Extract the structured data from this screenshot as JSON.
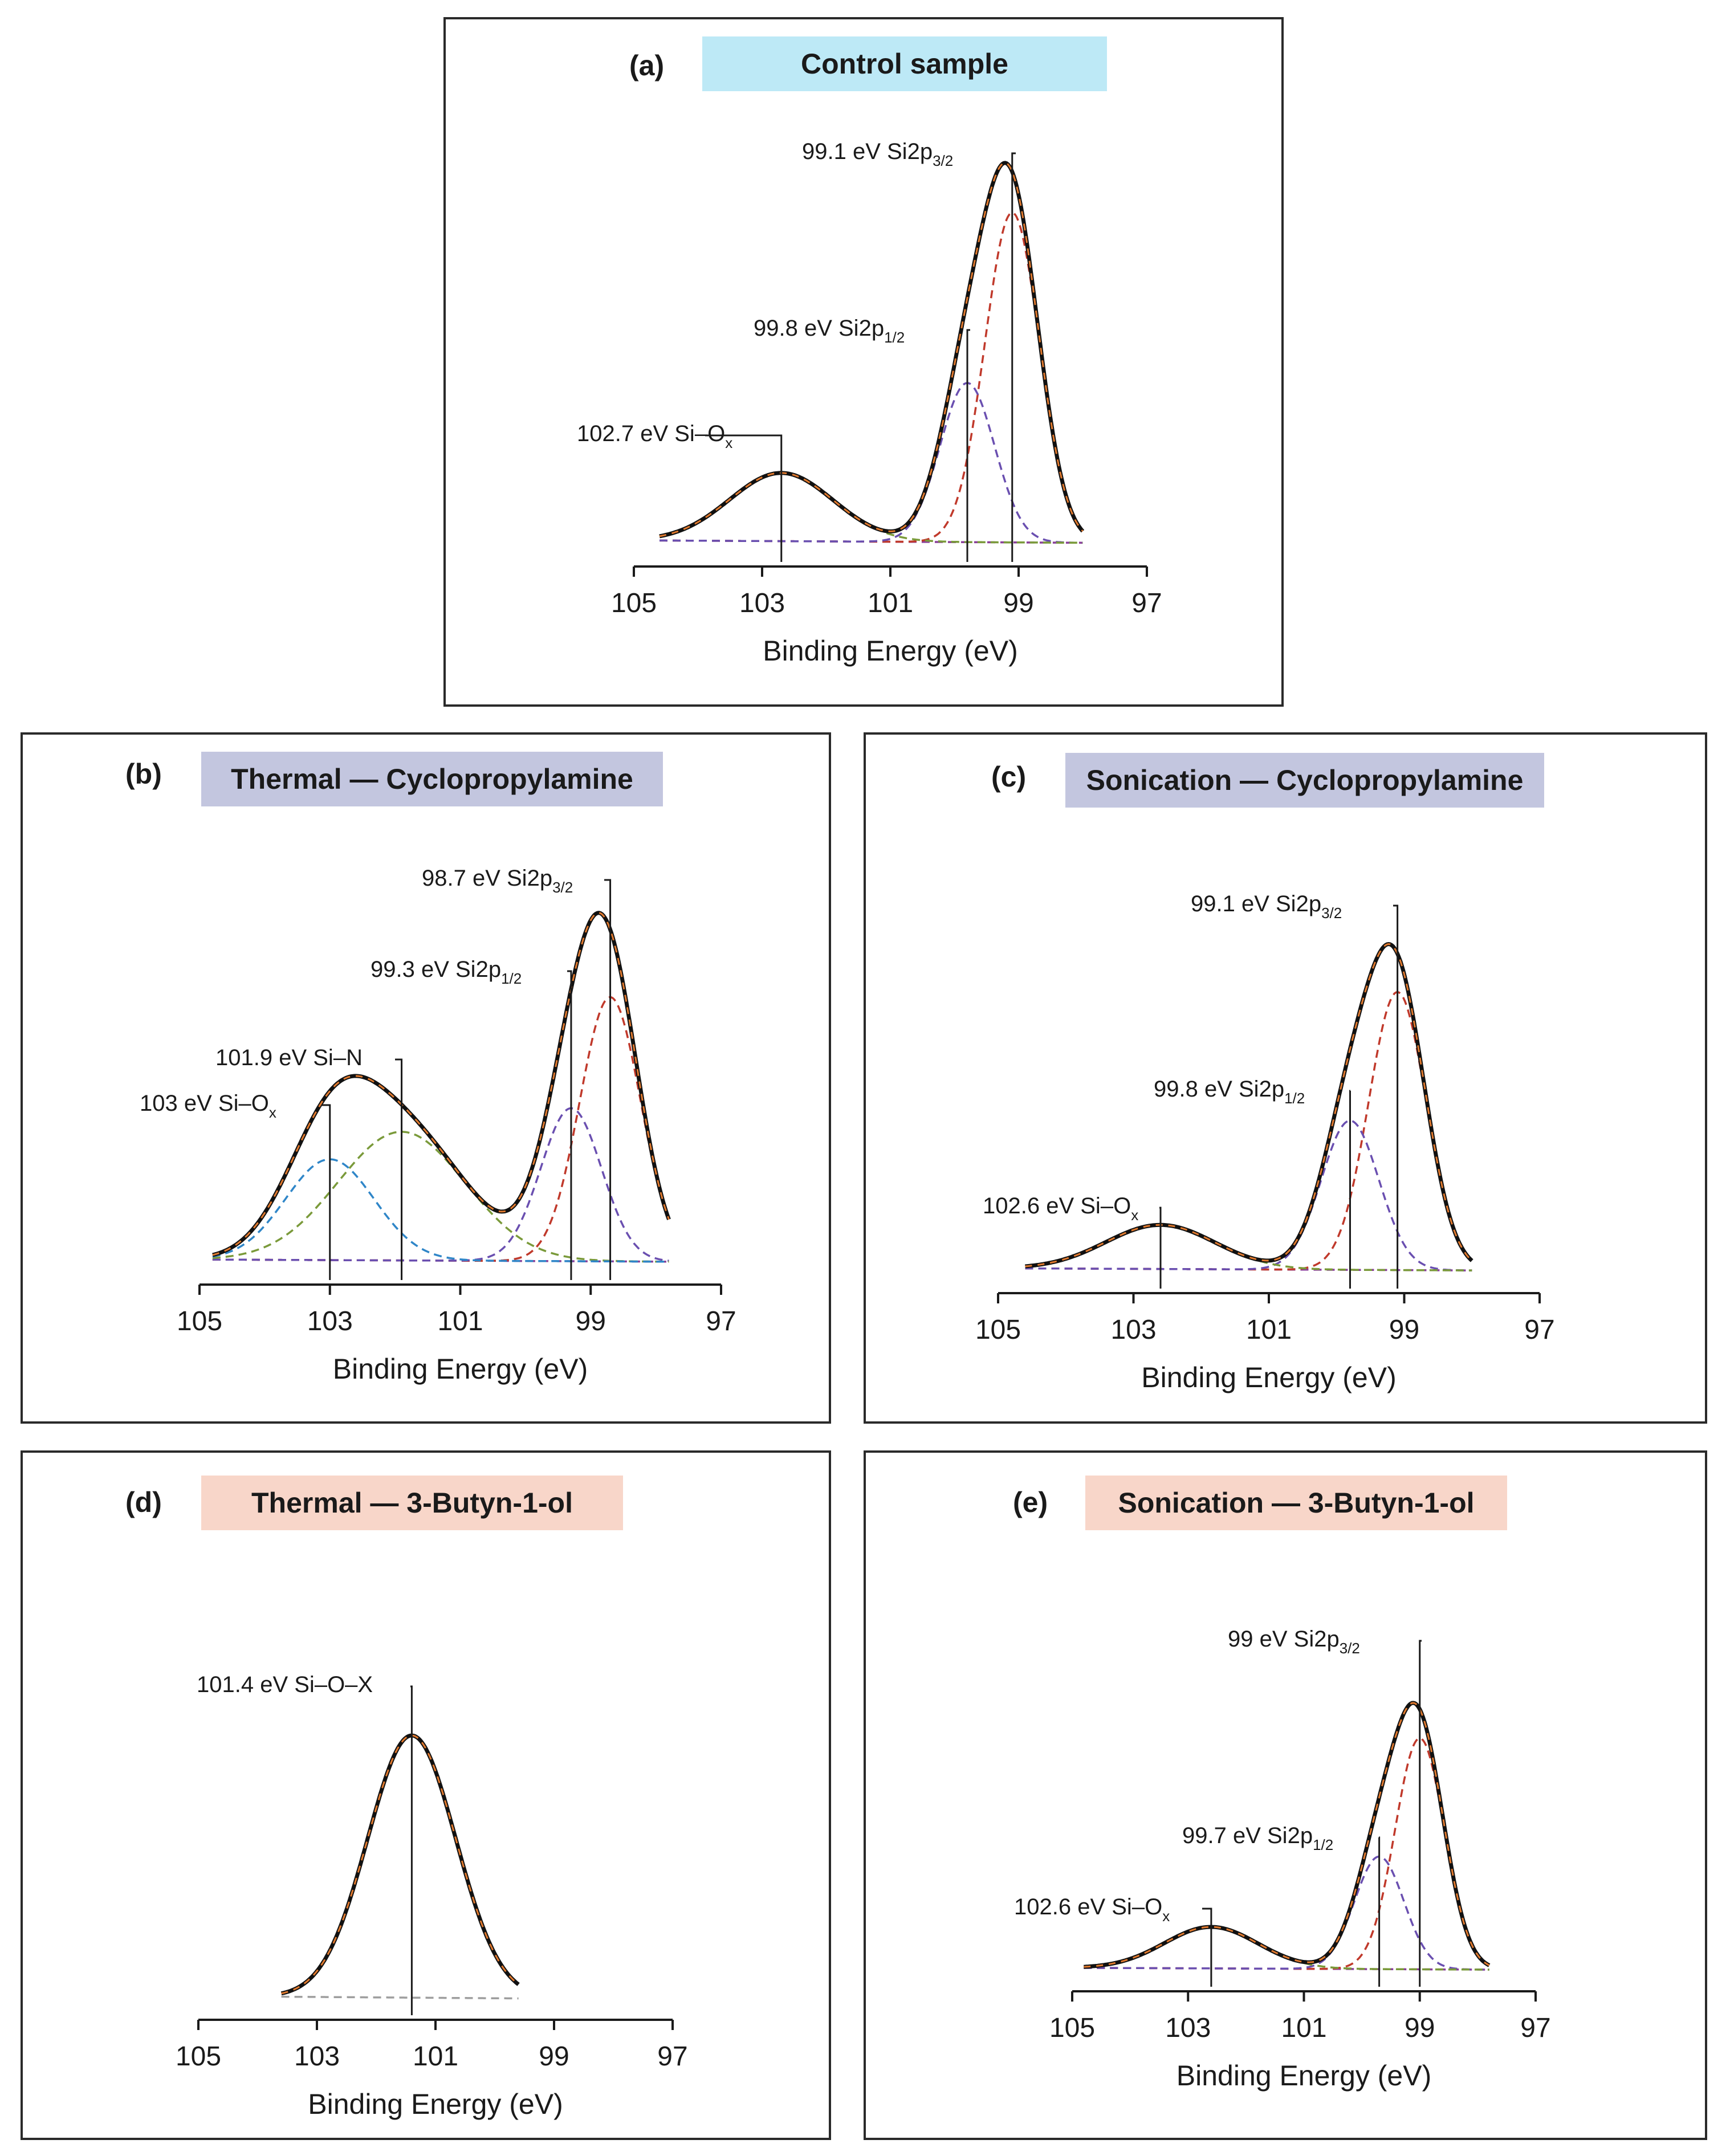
{
  "xaxis_label": "Binding Energy (eV)",
  "colors": {
    "envelope": "#111111",
    "fit_dashed": "#e0792e",
    "si2p32": "#c0392b",
    "si2p12": "#6a4fb0",
    "siox": "#7a9a3a",
    "sin": "#2f86c8",
    "background": "#8a3f9a",
    "background_d": "#9e9e9e",
    "control_title_bg": "#bde9f6",
    "cyclo_title_bg": "#c3c6df",
    "butynol_title_bg": "#f8d6c9"
  },
  "chart_data": [
    {
      "id": "a",
      "type": "line",
      "panel_label": "(a)",
      "title": "Control sample",
      "xlabel": "Binding Energy (eV)",
      "xlim": [
        105,
        97
      ],
      "xticks": [
        "105",
        "103",
        "101",
        "99",
        "97"
      ],
      "xtick_values": [
        105,
        103,
        101,
        99,
        97
      ],
      "fit_range": [
        104.6,
        98.0
      ],
      "components": [
        {
          "name": "Si2p3/2",
          "color_key": "si2p32",
          "center": 99.1,
          "fwhm": 1.0,
          "amplitude": 0.87
        },
        {
          "name": "Si2p1/2",
          "color_key": "si2p12",
          "center": 99.8,
          "fwhm": 1.0,
          "amplitude": 0.42
        },
        {
          "name": "Si–Ox",
          "color_key": "siox",
          "center": 102.7,
          "fwhm": 1.9,
          "amplitude": 0.18
        }
      ],
      "peak_labels": [
        {
          "position": 99.1,
          "prefix": "99.1 eV Si2p",
          "sub": "3/2"
        },
        {
          "position": 99.8,
          "prefix": "99.8 eV Si2p",
          "sub": "1/2"
        },
        {
          "position": 102.7,
          "prefix": "102.7 eV Si–O",
          "sub": "x"
        }
      ]
    },
    {
      "id": "b",
      "type": "line",
      "panel_label": "(b)",
      "title": "Thermal — Cyclopropylamine",
      "xlabel": "Binding Energy (eV)",
      "xlim": [
        105,
        97
      ],
      "xticks": [
        "105",
        "103",
        "101",
        "99",
        "97"
      ],
      "xtick_values": [
        105,
        103,
        101,
        99,
        97
      ],
      "fit_range": [
        104.8,
        97.8
      ],
      "components": [
        {
          "name": "Si2p3/2",
          "color_key": "si2p32",
          "center": 98.7,
          "fwhm": 1.1,
          "amplitude": 0.76
        },
        {
          "name": "Si2p1/2",
          "color_key": "si2p12",
          "center": 99.3,
          "fwhm": 1.1,
          "amplitude": 0.44
        },
        {
          "name": "Si–N",
          "color_key": "siox",
          "center": 101.9,
          "fwhm": 2.3,
          "amplitude": 0.37
        },
        {
          "name": "Si–Ox",
          "color_key": "sin",
          "center": 103.0,
          "fwhm": 1.6,
          "amplitude": 0.29
        }
      ],
      "peak_labels": [
        {
          "position": 98.7,
          "prefix": "98.7 eV Si2p",
          "sub": "3/2"
        },
        {
          "position": 99.3,
          "prefix": "99.3 eV Si2p",
          "sub": "1/2"
        },
        {
          "position": 101.9,
          "prefix": "101.9 eV Si–N",
          "sub": ""
        },
        {
          "position": 103.0,
          "prefix": "103 eV Si–O",
          "sub": "x"
        }
      ]
    },
    {
      "id": "c",
      "type": "line",
      "panel_label": "(c)",
      "title": "Sonication — Cyclopropylamine",
      "xlabel": "Binding Energy (eV)",
      "xlim": [
        105,
        97
      ],
      "xticks": [
        "105",
        "103",
        "101",
        "99",
        "97"
      ],
      "xtick_values": [
        105,
        103,
        101,
        99,
        97
      ],
      "fit_range": [
        104.6,
        98.0
      ],
      "components": [
        {
          "name": "Si2p3/2",
          "color_key": "si2p32",
          "center": 99.1,
          "fwhm": 1.0,
          "amplitude": 0.82
        },
        {
          "name": "Si2p1/2",
          "color_key": "si2p12",
          "center": 99.8,
          "fwhm": 1.0,
          "amplitude": 0.44
        },
        {
          "name": "Si–Ox",
          "color_key": "siox",
          "center": 102.6,
          "fwhm": 1.9,
          "amplitude": 0.13
        }
      ],
      "peak_labels": [
        {
          "position": 99.1,
          "prefix": "99.1 eV Si2p",
          "sub": "3/2"
        },
        {
          "position": 99.8,
          "prefix": "99.8 eV Si2p",
          "sub": "1/2"
        },
        {
          "position": 102.6,
          "prefix": "102.6 eV Si–O",
          "sub": "x"
        }
      ]
    },
    {
      "id": "d",
      "type": "line",
      "panel_label": "(d)",
      "title": "Thermal — 3-Butyn-1-ol",
      "xlabel": "Binding Energy (eV)",
      "xlim": [
        105,
        97
      ],
      "xticks": [
        "105",
        "103",
        "101",
        "99",
        "97"
      ],
      "xtick_values": [
        105,
        103,
        101,
        99,
        97
      ],
      "fit_range": [
        103.6,
        99.6
      ],
      "components": [
        {
          "name": "Si–O–X",
          "color_key": "si2p32",
          "center": 101.4,
          "fwhm": 1.75,
          "amplitude": 0.92
        }
      ],
      "peak_labels": [
        {
          "position": 101.4,
          "prefix": "101.4 eV Si–O–X",
          "sub": ""
        }
      ]
    },
    {
      "id": "e",
      "type": "line",
      "panel_label": "(e)",
      "title": "Sonication — 3-Butyn-1-ol",
      "xlabel": "Binding Energy (eV)",
      "xlim": [
        105,
        97
      ],
      "xticks": [
        "105",
        "103",
        "101",
        "99",
        "97"
      ],
      "xtick_values": [
        105,
        103,
        101,
        99,
        97
      ],
      "fit_range": [
        104.8,
        97.8
      ],
      "components": [
        {
          "name": "Si2p3/2",
          "color_key": "si2p32",
          "center": 99.0,
          "fwhm": 1.0,
          "amplitude": 0.78
        },
        {
          "name": "Si2p1/2",
          "color_key": "si2p12",
          "center": 99.7,
          "fwhm": 1.0,
          "amplitude": 0.38
        },
        {
          "name": "Si–Ox",
          "color_key": "siox",
          "center": 102.6,
          "fwhm": 1.9,
          "amplitude": 0.14
        }
      ],
      "peak_labels": [
        {
          "position": 99.0,
          "prefix": "99 eV Si2p",
          "sub": "3/2"
        },
        {
          "position": 99.7,
          "prefix": "99.7 eV Si2p",
          "sub": "1/2"
        },
        {
          "position": 102.6,
          "prefix": "102.6 eV Si–O",
          "sub": "x"
        }
      ]
    }
  ]
}
